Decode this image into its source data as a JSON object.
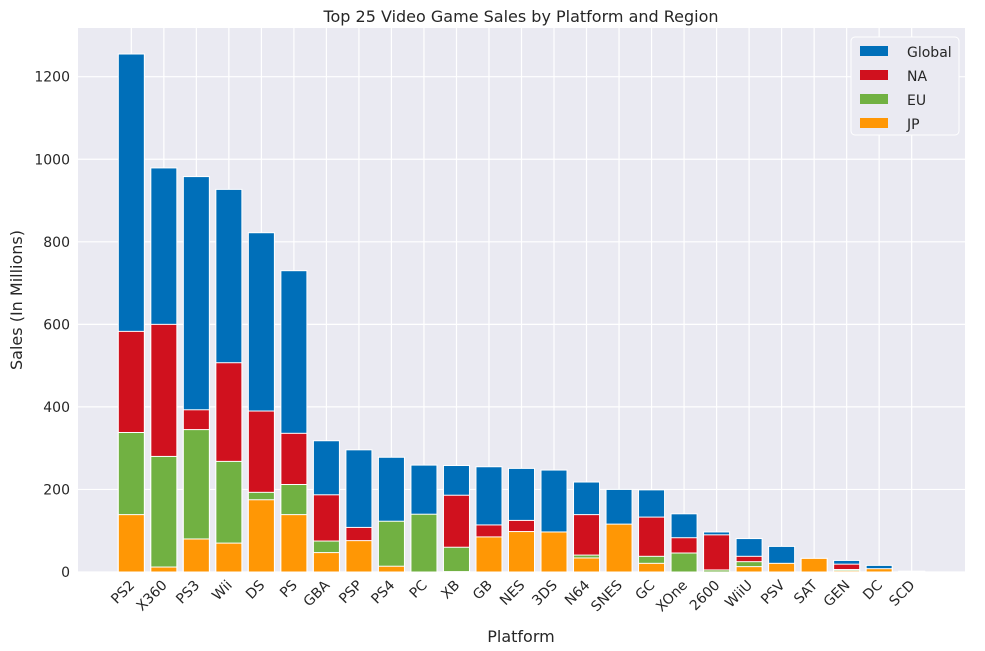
{
  "chart_data": {
    "type": "bar",
    "mode": "overlaid",
    "title": "Top 25 Video Game Sales by Platform and Region",
    "xlabel": "Platform",
    "ylabel": "Sales (In Millions)",
    "ylim": [
      0,
      1318
    ],
    "yticks": [
      0,
      200,
      400,
      600,
      800,
      1000,
      1200
    ],
    "grid": true,
    "legend_position": "top-right",
    "categories": [
      "PS2",
      "X360",
      "PS3",
      "Wii",
      "DS",
      "PS",
      "GBA",
      "PSP",
      "PS4",
      "PC",
      "XB",
      "GB",
      "NES",
      "3DS",
      "N64",
      "SNES",
      "GC",
      "XOne",
      "2600",
      "WiiU",
      "PSV",
      "SAT",
      "GEN",
      "DC",
      "SCD"
    ],
    "series": [
      {
        "name": "Global",
        "color": "#006fb9",
        "values": [
          1255,
          979,
          958,
          927,
          822,
          730,
          318,
          296,
          278,
          259,
          258,
          255,
          251,
          247,
          218,
          200,
          199,
          141,
          97,
          81,
          62,
          33,
          28,
          16,
          2
        ]
      },
      {
        "name": "NA",
        "color": "#d0111e",
        "values": [
          583,
          600,
          393,
          507,
          390,
          336,
          187,
          108,
          96,
          93,
          186,
          114,
          125,
          78,
          139,
          61,
          133,
          83,
          90,
          38,
          16,
          1,
          19,
          5,
          1
        ]
      },
      {
        "name": "EU",
        "color": "#71b142",
        "values": [
          338,
          280,
          345,
          268,
          193,
          212,
          75,
          68,
          123,
          140,
          60,
          47,
          21,
          58,
          41,
          19,
          38,
          46,
          5,
          25,
          16,
          1,
          6,
          2,
          0
        ]
      },
      {
        "name": "JP",
        "color": "#ff9705",
        "values": [
          139,
          12,
          80,
          70,
          175,
          139,
          47,
          76,
          14,
          0,
          1,
          85,
          98,
          97,
          34,
          116,
          21,
          0,
          0,
          13,
          21,
          33,
          3,
          8,
          1
        ]
      }
    ],
    "background": "#eaeaf2"
  }
}
